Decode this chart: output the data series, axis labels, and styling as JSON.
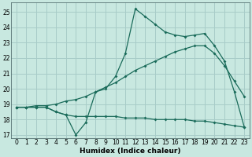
{
  "xlabel": "Humidex (Indice chaleur)",
  "bg_color": "#c8e8e0",
  "grid_color": "#a8ccc8",
  "line_color": "#1a6b5a",
  "xlim": [
    -0.5,
    23.5
  ],
  "ylim": [
    16.8,
    25.6
  ],
  "xticks": [
    0,
    1,
    2,
    3,
    4,
    5,
    6,
    7,
    8,
    9,
    10,
    11,
    12,
    13,
    14,
    15,
    16,
    17,
    18,
    19,
    20,
    21,
    22,
    23
  ],
  "yticks": [
    17,
    18,
    19,
    20,
    21,
    22,
    23,
    24,
    25
  ],
  "line1_x": [
    0,
    1,
    2,
    3,
    4,
    5,
    6,
    7,
    8,
    9,
    10,
    11,
    12,
    13,
    14,
    15,
    16,
    17,
    18,
    19,
    20,
    21,
    22,
    23
  ],
  "line1_y": [
    18.8,
    18.8,
    18.8,
    18.8,
    18.5,
    18.3,
    17.0,
    17.8,
    19.8,
    20.0,
    20.8,
    22.3,
    25.2,
    24.7,
    24.2,
    23.7,
    23.5,
    23.4,
    23.5,
    23.6,
    22.8,
    21.8,
    19.8,
    17.5
  ],
  "line2_x": [
    0,
    1,
    2,
    3,
    4,
    5,
    6,
    7,
    8,
    9,
    10,
    11,
    12,
    13,
    14,
    15,
    16,
    17,
    18,
    19,
    20,
    21,
    22,
    23
  ],
  "line2_y": [
    18.8,
    18.8,
    18.8,
    18.8,
    18.5,
    18.3,
    18.2,
    18.2,
    18.2,
    18.2,
    18.2,
    18.1,
    18.1,
    18.1,
    18.0,
    18.0,
    18.0,
    18.0,
    17.9,
    17.9,
    17.8,
    17.7,
    17.6,
    17.5
  ],
  "line3_x": [
    0,
    1,
    2,
    3,
    4,
    5,
    6,
    7,
    8,
    9,
    10,
    11,
    12,
    13,
    14,
    15,
    16,
    17,
    18,
    19,
    20,
    21,
    22,
    23
  ],
  "line3_y": [
    18.8,
    18.8,
    18.9,
    18.9,
    19.0,
    19.2,
    19.3,
    19.5,
    19.8,
    20.1,
    20.4,
    20.8,
    21.2,
    21.5,
    21.8,
    22.1,
    22.4,
    22.6,
    22.8,
    22.8,
    22.3,
    21.5,
    20.5,
    19.5
  ]
}
